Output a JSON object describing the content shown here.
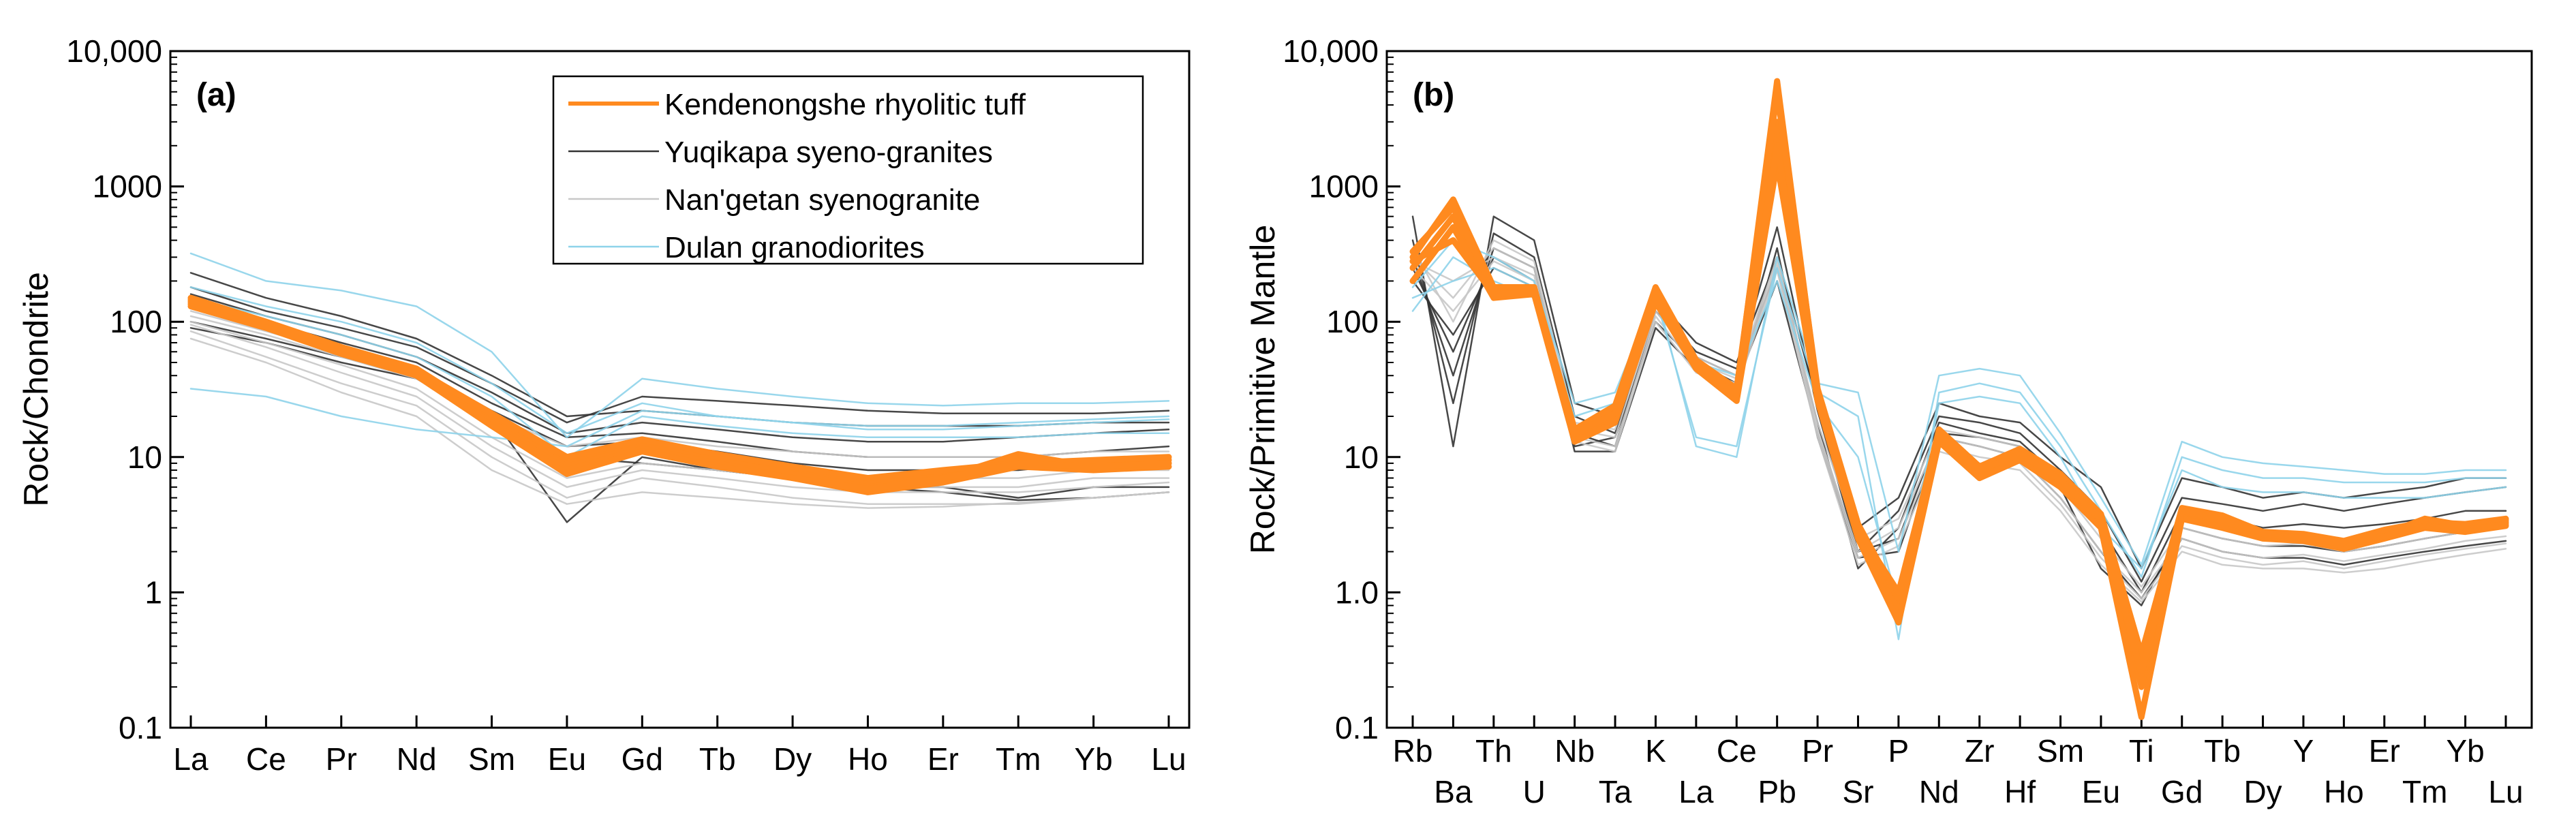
{
  "chart_data": [
    {
      "panel": "(a)",
      "type": "line",
      "scale": "log",
      "ylabel": "Rock/Chondrite",
      "ylim": [
        0.1,
        10000
      ],
      "yticks": [
        "0.1",
        "1",
        "10",
        "100",
        "1000",
        "10,000"
      ],
      "categories": [
        "La",
        "Ce",
        "Pr",
        "Nd",
        "Sm",
        "Eu",
        "Gd",
        "Tb",
        "Dy",
        "Ho",
        "Er",
        "Tm",
        "Yb",
        "Lu"
      ],
      "legend": [
        {
          "label": "Kendenongshe rhyolitic tuff",
          "color": "#FF8A1F",
          "style": "thick"
        },
        {
          "label": "Yuqikapa syeno-granites",
          "color": "#333333",
          "style": "thin"
        },
        {
          "label": "Nan'getan syenogranite",
          "color": "#C8C8C8",
          "style": "thin"
        },
        {
          "label": "Dulan granodiorites",
          "color": "#8ED3EA",
          "style": "thin"
        }
      ],
      "series": [
        {
          "name": "Yuqikapa syeno-granites",
          "color": "#333333",
          "values": [
            230,
            150,
            110,
            75,
            40,
            20,
            22,
            20,
            18,
            17,
            17,
            17,
            18,
            18
          ]
        },
        {
          "name": "Yuqikapa syeno-granites",
          "color": "#333333",
          "values": [
            180,
            120,
            90,
            65,
            35,
            18,
            28,
            26,
            24,
            22,
            21,
            21,
            21,
            22
          ]
        },
        {
          "name": "Yuqikapa syeno-granites",
          "color": "#333333",
          "values": [
            160,
            110,
            80,
            55,
            30,
            15,
            18,
            16,
            14,
            13,
            13,
            14,
            15,
            16
          ]
        },
        {
          "name": "Yuqikapa syeno-granites",
          "color": "#333333",
          "values": [
            140,
            100,
            70,
            50,
            25,
            14,
            15,
            13,
            11,
            10,
            10,
            10,
            11,
            12
          ]
        },
        {
          "name": "Yuqikapa syeno-granites",
          "color": "#333333",
          "values": [
            130,
            90,
            65,
            45,
            22,
            12,
            13,
            11,
            9,
            8,
            8,
            8,
            9,
            9
          ]
        },
        {
          "name": "Yuqikapa syeno-granites",
          "color": "#333333",
          "values": [
            100,
            75,
            55,
            40,
            20,
            3.3,
            10,
            8,
            7,
            6,
            6,
            5,
            6,
            6
          ]
        },
        {
          "name": "Yuqikapa syeno-granites",
          "color": "#333333",
          "values": [
            90,
            70,
            50,
            38,
            18,
            10,
            9,
            8,
            7,
            6,
            5.5,
            4.8,
            5,
            5.5
          ]
        },
        {
          "name": "Nan'getan syenogranite",
          "color": "#C8C8C8",
          "values": [
            110,
            80,
            55,
            38,
            18,
            9,
            11,
            9,
            8,
            7,
            7,
            7,
            8,
            8
          ]
        },
        {
          "name": "Nan'getan syenogranite",
          "color": "#C8C8C8",
          "values": [
            100,
            70,
            48,
            32,
            14,
            7,
            9,
            8,
            7,
            6,
            6,
            6,
            7,
            7
          ]
        },
        {
          "name": "Nan'getan syenogranite",
          "color": "#C8C8C8",
          "values": [
            95,
            65,
            42,
            28,
            12,
            6,
            8,
            7,
            6,
            5.5,
            5.5,
            5.5,
            6,
            6.5
          ]
        },
        {
          "name": "Nan'getan syenogranite",
          "color": "#C8C8C8",
          "values": [
            85,
            55,
            35,
            24,
            10,
            5,
            7,
            6,
            5,
            4.5,
            4.5,
            4.5,
            5,
            5.5
          ]
        },
        {
          "name": "Nan'getan syenogranite",
          "color": "#C8C8C8",
          "values": [
            75,
            50,
            30,
            20,
            8,
            4.5,
            5.5,
            5,
            4.5,
            4.2,
            4.3,
            4.6,
            5,
            5.5
          ]
        },
        {
          "name": "Nan'getan syenogranite",
          "color": "#C8C8C8",
          "values": [
            120,
            85,
            60,
            40,
            20,
            12,
            14,
            12,
            11,
            10,
            10,
            10,
            11,
            11
          ]
        },
        {
          "name": "Dulan granodiorites",
          "color": "#8ED3EA",
          "values": [
            320,
            200,
            170,
            130,
            60,
            14,
            38,
            32,
            28,
            25,
            24,
            25,
            25,
            26
          ]
        },
        {
          "name": "Dulan granodiorites",
          "color": "#8ED3EA",
          "values": [
            32,
            28,
            20,
            16,
            14,
            12,
            22,
            20,
            18,
            17,
            17,
            18,
            19,
            20
          ]
        },
        {
          "name": "Dulan granodiorites",
          "color": "#8ED3EA",
          "values": [
            180,
            130,
            100,
            70,
            35,
            15,
            25,
            20,
            18,
            16,
            16,
            17,
            18,
            19
          ]
        },
        {
          "name": "Dulan granodiorites",
          "color": "#8ED3EA",
          "values": [
            150,
            110,
            80,
            55,
            28,
            10,
            20,
            17,
            15,
            14,
            14,
            14,
            15,
            15
          ]
        },
        {
          "name": "Kendenongshe rhyolitic tuff",
          "color": "#FF8A1F",
          "values": [
            150,
            100,
            65,
            45,
            20,
            9,
            13,
            10,
            8,
            6.5,
            7.5,
            9.5,
            9,
            9.5
          ]
        },
        {
          "name": "Kendenongshe rhyolitic tuff",
          "color": "#FF8A1F",
          "values": [
            140,
            95,
            62,
            42,
            19,
            8.5,
            12,
            9.5,
            7.5,
            6,
            7,
            10.5,
            8.5,
            9
          ]
        },
        {
          "name": "Kendenongshe rhyolitic tuff",
          "color": "#FF8A1F",
          "values": [
            135,
            92,
            60,
            41,
            18,
            8,
            11.5,
            9,
            7,
            5.5,
            6.5,
            8.5,
            8,
            8.5
          ]
        },
        {
          "name": "Kendenongshe rhyolitic tuff",
          "color": "#FF8A1F",
          "values": [
            145,
            98,
            64,
            44,
            21,
            10,
            13.5,
            10.5,
            8.5,
            7,
            8,
            9,
            9.5,
            10
          ]
        },
        {
          "name": "Kendenongshe rhyolitic tuff",
          "color": "#FF8A1F",
          "values": [
            130,
            90,
            58,
            40,
            17,
            7.5,
            11,
            8.5,
            7,
            5.8,
            7,
            9,
            8.5,
            9
          ]
        }
      ]
    },
    {
      "panel": "(b)",
      "type": "line",
      "scale": "log",
      "ylabel": "Rock/Primitive Mantle",
      "ylim": [
        0.1,
        10000
      ],
      "yticks": [
        "0.1",
        "1.0",
        "10",
        "100",
        "1000",
        "10,000"
      ],
      "categories": [
        "Rb",
        "Ba",
        "Th",
        "U",
        "Nb",
        "Ta",
        "K",
        "La",
        "Ce",
        "Pb",
        "Pr",
        "Sr",
        "P",
        "Nd",
        "Zr",
        "Hf",
        "Sm",
        "Eu",
        "Ti",
        "Gd",
        "Tb",
        "Dy",
        "Y",
        "Ho",
        "Er",
        "Tm",
        "Yb",
        "Lu"
      ],
      "series": [
        {
          "name": "Yuqikapa syeno-granites",
          "color": "#333333",
          "values": [
            600,
            12,
            600,
            400,
            25,
            20,
            150,
            70,
            50,
            300,
            25,
            3,
            5,
            25,
            20,
            18,
            10,
            6,
            1.5,
            7,
            6,
            5,
            5.5,
            5,
            5.5,
            6,
            7,
            7
          ]
        },
        {
          "name": "Yuqikapa syeno-granites",
          "color": "#333333",
          "values": [
            400,
            25,
            450,
            300,
            20,
            15,
            130,
            60,
            45,
            500,
            22,
            2,
            4,
            20,
            18,
            15,
            8,
            4,
            1.2,
            5,
            4.5,
            4,
            4.5,
            4,
            4.5,
            5,
            5.5,
            6
          ]
        },
        {
          "name": "Yuqikapa syeno-granites",
          "color": "#333333",
          "values": [
            300,
            40,
            350,
            250,
            15,
            12,
            120,
            55,
            40,
            250,
            18,
            1.5,
            3,
            18,
            15,
            13,
            7,
            3,
            1,
            4,
            3.5,
            3,
            3.2,
            3,
            3.2,
            3.5,
            4,
            4
          ]
        },
        {
          "name": "Yuqikapa syeno-granites",
          "color": "#333333",
          "values": [
            250,
            60,
            300,
            200,
            12,
            14,
            100,
            50,
            35,
            200,
            15,
            2,
            2.5,
            15,
            14,
            12,
            6,
            1.5,
            0.8,
            3,
            2.5,
            2.2,
            2.2,
            2,
            2.2,
            2.5,
            2.8,
            3
          ]
        },
        {
          "name": "Yuqikapa syeno-granites",
          "color": "#333333",
          "values": [
            200,
            80,
            250,
            180,
            11,
            11,
            90,
            45,
            30,
            350,
            14,
            1.8,
            2,
            14,
            12,
            10,
            5,
            2,
            0.9,
            2.5,
            2,
            1.8,
            1.8,
            1.6,
            1.8,
            2,
            2.2,
            2.4
          ]
        },
        {
          "name": "Nan'getan syenogranite",
          "color": "#C8C8C8",
          "values": [
            350,
            100,
            400,
            280,
            18,
            16,
            130,
            55,
            40,
            300,
            18,
            2.5,
            3.5,
            16,
            14,
            12,
            6,
            2.5,
            1.1,
            3,
            2.5,
            2.2,
            2.3,
            2,
            2.2,
            2.5,
            2.8,
            3
          ]
        },
        {
          "name": "Nan'getan syenogranite",
          "color": "#C8C8C8",
          "values": [
            300,
            150,
            350,
            250,
            16,
            14,
            120,
            50,
            38,
            280,
            16,
            2,
            3,
            14,
            12,
            10,
            5,
            2,
            1,
            2.5,
            2,
            1.8,
            1.9,
            1.7,
            1.9,
            2.1,
            2.4,
            2.6
          ]
        },
        {
          "name": "Nan'getan syenogranite",
          "color": "#C8C8C8",
          "values": [
            280,
            200,
            300,
            220,
            14,
            12,
            110,
            45,
            35,
            260,
            15,
            1.8,
            2.5,
            12,
            10,
            9,
            4.5,
            1.8,
            0.9,
            2.2,
            1.8,
            1.6,
            1.7,
            1.5,
            1.7,
            1.9,
            2.1,
            2.3
          ]
        },
        {
          "name": "Nan'getan syenogranite",
          "color": "#C8C8C8",
          "values": [
            250,
            120,
            280,
            200,
            13,
            11,
            100,
            42,
            32,
            240,
            14,
            1.6,
            2.2,
            11,
            9,
            8,
            4,
            1.6,
            0.85,
            2,
            1.6,
            1.5,
            1.5,
            1.4,
            1.5,
            1.7,
            1.9,
            2.1
          ]
        },
        {
          "name": "Dulan granodiorites",
          "color": "#8ED3EA",
          "values": [
            150,
            200,
            250,
            180,
            20,
            25,
            170,
            12,
            10,
            300,
            35,
            30,
            2,
            40,
            45,
            40,
            15,
            5,
            1.6,
            13,
            10,
            9,
            8.5,
            8,
            7.5,
            7.5,
            8,
            8
          ]
        },
        {
          "name": "Dulan granodiorites",
          "color": "#8ED3EA",
          "values": [
            120,
            300,
            200,
            150,
            15,
            20,
            150,
            14,
            12,
            250,
            30,
            20,
            0.45,
            30,
            35,
            30,
            12,
            4,
            1.3,
            10,
            8,
            7,
            7,
            6.5,
            6.5,
            6.5,
            7,
            7
          ]
        },
        {
          "name": "Dulan granodiorites",
          "color": "#8ED3EA",
          "values": [
            180,
            400,
            300,
            200,
            25,
            30,
            160,
            50,
            40,
            200,
            25,
            10,
            0.8,
            25,
            28,
            25,
            10,
            3,
            1.5,
            8,
            6,
            5.5,
            5.5,
            5,
            5,
            5,
            5.5,
            6
          ]
        },
        {
          "name": "Kendenongshe rhyolitic tuff",
          "color": "#FF8A1F",
          "values": [
            300,
            800,
            180,
            180,
            15,
            22,
            170,
            50,
            30,
            6000,
            30,
            3,
            0.8,
            15,
            8,
            11,
            7,
            3.5,
            0.3,
            4,
            3.5,
            2.7,
            2.6,
            2.3,
            2.8,
            3.2,
            3,
            3.3
          ]
        },
        {
          "name": "Kendenongshe rhyolitic tuff",
          "color": "#FF8A1F",
          "values": [
            250,
            600,
            160,
            170,
            14,
            20,
            160,
            48,
            28,
            3000,
            28,
            2.8,
            0.7,
            14,
            7.5,
            10,
            6.5,
            3.2,
            0.2,
            3.8,
            3.3,
            2.6,
            2.5,
            2.2,
            2.7,
            3.5,
            3.1,
            3.4
          ]
        },
        {
          "name": "Kendenongshe rhyolitic tuff",
          "color": "#FF8A1F",
          "values": [
            200,
            500,
            150,
            160,
            13,
            18,
            140,
            45,
            26,
            1500,
            26,
            2.5,
            0.6,
            13,
            7,
            9.5,
            6,
            3,
            0.12,
            3.5,
            3,
            2.5,
            2.4,
            2.1,
            2.5,
            3,
            2.8,
            3.1
          ]
        },
        {
          "name": "Kendenongshe rhyolitic tuff",
          "color": "#FF8A1F",
          "values": [
            330,
            700,
            170,
            175,
            16,
            24,
            180,
            52,
            32,
            5000,
            32,
            3.2,
            0.9,
            16,
            8.5,
            11.5,
            7.5,
            3.8,
            0.35,
            4.2,
            3.7,
            2.8,
            2.7,
            2.4,
            2.9,
            3.3,
            3.2,
            3.5
          ]
        },
        {
          "name": "Kendenongshe rhyolitic tuff",
          "color": "#FF8A1F",
          "values": [
            280,
            400,
            160,
            165,
            15,
            21,
            150,
            47,
            29,
            2000,
            29,
            2.9,
            1.0,
            14.5,
            8,
            10.5,
            6.8,
            3.4,
            0.25,
            4,
            3.4,
            2.7,
            2.5,
            2.3,
            2.6,
            3.1,
            2.9,
            3.2
          ]
        }
      ]
    }
  ]
}
